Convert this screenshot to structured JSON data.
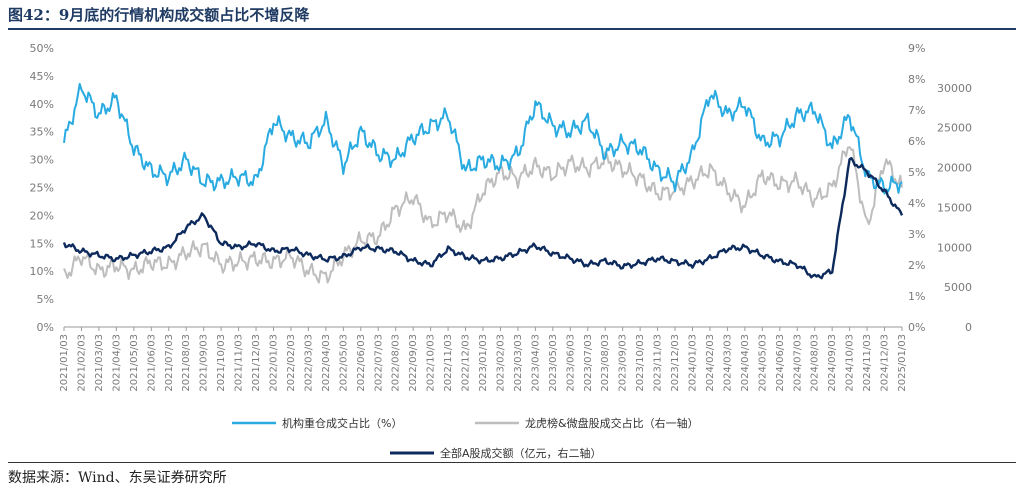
{
  "title": "图42：9月底的行情机构成交额占比不增反降",
  "source": "数据来源：Wind、东吴证券研究所",
  "chart_data": {
    "type": "line",
    "x_dates": [
      "2021/01/03",
      "2021/02/03",
      "2021/03/03",
      "2021/04/03",
      "2021/05/03",
      "2021/06/03",
      "2021/07/03",
      "2021/08/03",
      "2021/09/03",
      "2021/10/03",
      "2021/11/03",
      "2021/12/03",
      "2022/01/03",
      "2022/02/03",
      "2022/03/03",
      "2022/04/03",
      "2022/05/03",
      "2022/06/03",
      "2022/07/03",
      "2022/08/03",
      "2022/09/03",
      "2022/10/03",
      "2022/11/03",
      "2022/12/03",
      "2023/01/03",
      "2023/02/03",
      "2023/03/03",
      "2023/04/03",
      "2023/05/03",
      "2023/06/03",
      "2023/07/03",
      "2023/08/03",
      "2023/09/03",
      "2023/10/03",
      "2023/11/03",
      "2023/12/03",
      "2024/01/03",
      "2024/02/03",
      "2024/03/03",
      "2024/04/03",
      "2024/05/03",
      "2024/06/03",
      "2024/07/03",
      "2024/08/03",
      "2024/09/03",
      "2024/10/03",
      "2024/11/03",
      "2024/12/03",
      "2025/01/03"
    ],
    "axes": {
      "left": {
        "min": 0,
        "max": 50,
        "ticks": [
          "0%",
          "5%",
          "10%",
          "15%",
          "20%",
          "25%",
          "30%",
          "35%",
          "40%",
          "45%",
          "50%"
        ]
      },
      "right1": {
        "min": 0,
        "max": 9,
        "ticks": [
          "0%",
          "1%",
          "2%",
          "3%",
          "4%",
          "5%",
          "6%",
          "7%",
          "8%",
          "9%"
        ]
      },
      "right2": {
        "min": 0,
        "max": 35000,
        "ticks": [
          "0",
          "5000",
          "10000",
          "15000",
          "20000",
          "25000",
          "30000"
        ]
      }
    },
    "series": [
      {
        "name": "机构重仓成交占比（%）",
        "axis": "left",
        "color": "#29abe2",
        "values": [
          33,
          43,
          38,
          41,
          32,
          28,
          27,
          30,
          26,
          26,
          27,
          26,
          37,
          34,
          33,
          37,
          29,
          35,
          31,
          30,
          34,
          36,
          38,
          28,
          30,
          29,
          31,
          40,
          36,
          35,
          37,
          31,
          33,
          32,
          28,
          26,
          31,
          42,
          38,
          40,
          33,
          34,
          38,
          39,
          32,
          38,
          27,
          25,
          26
        ]
      },
      {
        "name": "龙虎榜&微盘股成交占比（右一轴）",
        "axis": "right1",
        "color": "#bdbdbd",
        "values": [
          1.6,
          2.3,
          1.8,
          2.0,
          1.8,
          2.1,
          2.0,
          2.4,
          2.6,
          2.0,
          2.1,
          2.2,
          2.1,
          2.3,
          1.8,
          1.6,
          2.3,
          2.8,
          2.9,
          3.8,
          4.2,
          3.3,
          3.7,
          3.1,
          4.4,
          5.0,
          4.8,
          5.2,
          4.9,
          5.3,
          5.1,
          5.4,
          5.1,
          4.8,
          4.3,
          4.4,
          4.7,
          5.1,
          4.4,
          3.9,
          4.9,
          4.6,
          4.7,
          4.1,
          4.5,
          6.0,
          3.2,
          5.4,
          4.5
        ]
      },
      {
        "name": "全部A股成交额（亿元，右二轴）",
        "axis": "right2",
        "color": "#0d2a5c",
        "values": [
          10500,
          9500,
          9000,
          8500,
          9000,
          9500,
          10000,
          12500,
          14000,
          10500,
          10000,
          10500,
          9500,
          9800,
          9000,
          8500,
          8800,
          10000,
          9800,
          9500,
          8300,
          7800,
          9800,
          8800,
          8300,
          8600,
          9300,
          10200,
          9200,
          8600,
          7800,
          8300,
          7600,
          8000,
          8600,
          8200,
          7800,
          8600,
          9800,
          10000,
          9000,
          8200,
          7800,
          6200,
          7000,
          21000,
          19500,
          17000,
          14000
        ]
      }
    ],
    "x_ticks_shown": [
      "2021/01/03",
      "2021/02/03",
      "2021/03/03",
      "2021/04/03",
      "2021/05/03",
      "2021/06/03",
      "2021/07/03",
      "2021/08/03",
      "2021/09/03",
      "2021/10/03",
      "2021/11/03",
      "2021/12/03",
      "2022/01/03",
      "2022/02/03",
      "2022/03/03",
      "2022/04/03",
      "2022/05/03",
      "2022/06/03",
      "2022/07/03",
      "2022/08/03",
      "2022/09/03",
      "2022/10/03",
      "2022/11/03",
      "2022/12/03",
      "2023/01/03",
      "2023/02/03",
      "2023/03/03",
      "2023/04/03",
      "2023/05/03",
      "2023/06/03",
      "2023/07/03",
      "2023/08/03",
      "2023/09/03",
      "2023/10/03",
      "2023/11/03",
      "2023/12/03",
      "2024/01/03",
      "2024/02/03",
      "2024/03/03",
      "2024/04/03",
      "2024/05/03",
      "2024/06/03",
      "2024/07/03",
      "2024/08/03",
      "2024/09/03",
      "2024/10/03",
      "2024/11/03",
      "2024/12/03",
      "2025/01/03"
    ],
    "legend_position": "bottom",
    "grid": false
  }
}
